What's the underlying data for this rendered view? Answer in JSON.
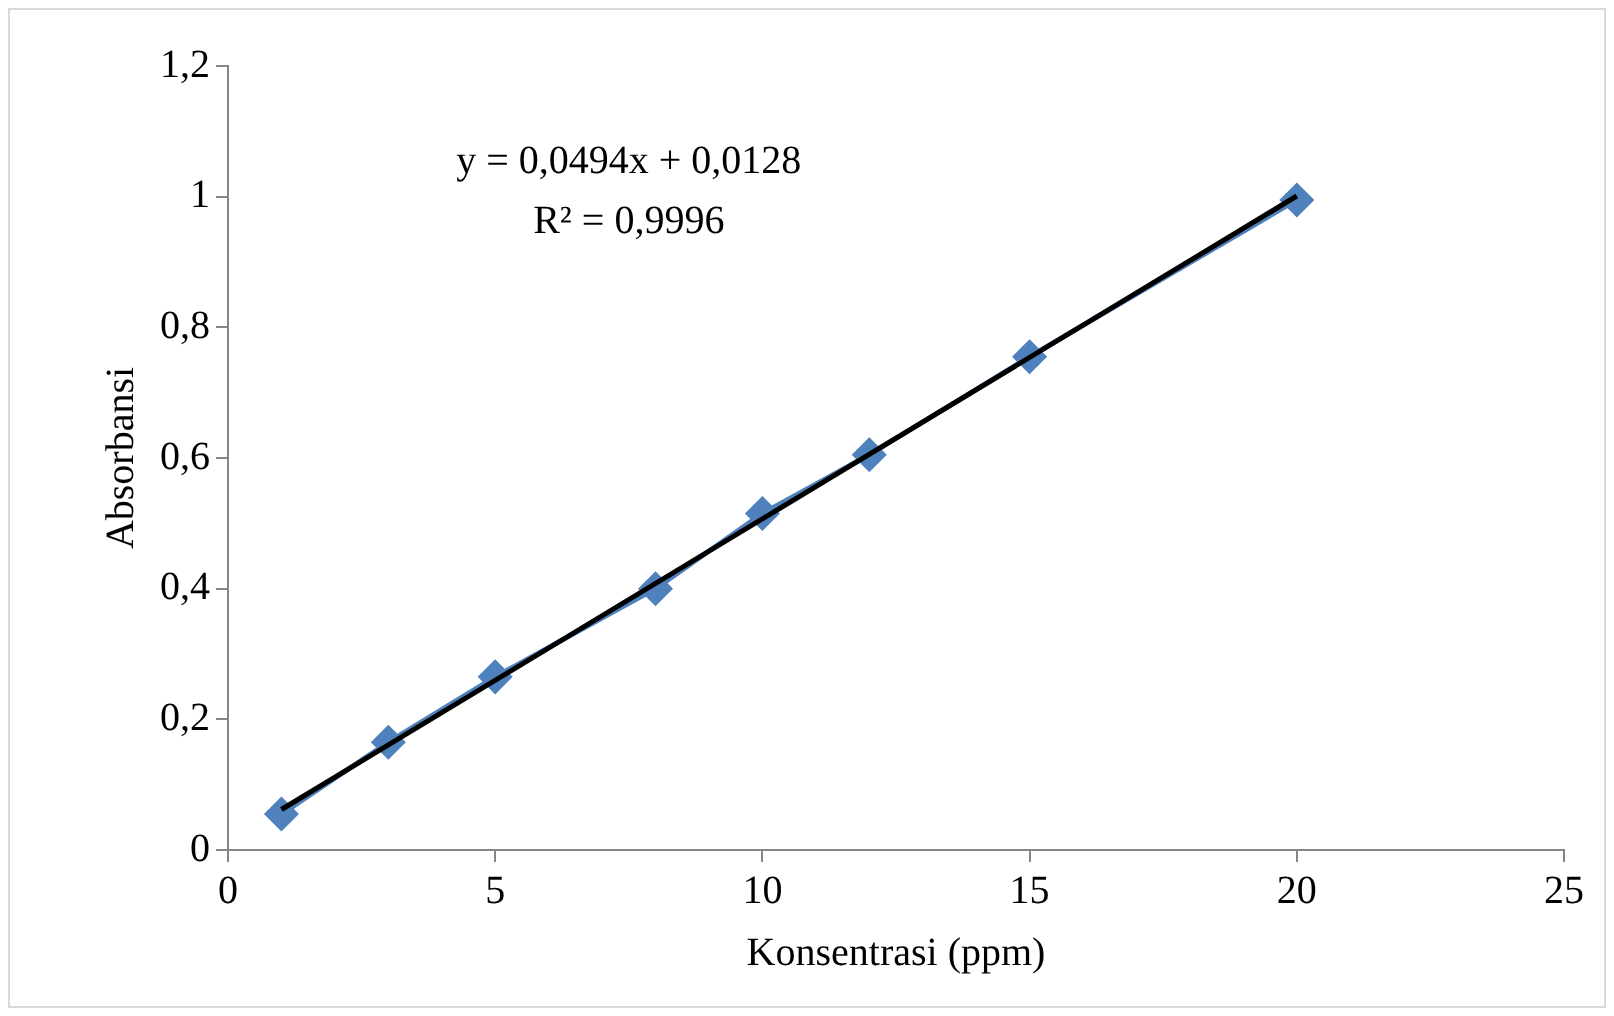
{
  "chart_data": {
    "type": "line",
    "xlabel": "Konsentrasi (ppm)",
    "ylabel": "Absorbansi",
    "xlim": [
      0,
      25
    ],
    "xticks": [
      0,
      5,
      10,
      15,
      20,
      25
    ],
    "ylim": [
      0,
      1.2
    ],
    "yticks": [
      0,
      {
        "value": 0.2,
        "label": "0,2"
      },
      {
        "value": 0.4,
        "label": "0,4"
      },
      {
        "value": 0.6,
        "label": "0,6"
      },
      {
        "value": 0.8,
        "label": "0,8"
      },
      1,
      {
        "value": 1.2,
        "label": "1,2"
      }
    ],
    "marker": "diamond",
    "series": [
      {
        "color": "#4f81bd",
        "x": [
          1,
          3,
          5,
          8,
          10,
          12,
          15,
          20
        ],
        "values": [
          0.055,
          0.165,
          0.265,
          0.4,
          0.515,
          0.605,
          0.755,
          0.995
        ]
      },
      {
        "color": "#000000",
        "marker": "none",
        "x": [
          1,
          20
        ],
        "values": [
          0.062,
          1.001
        ]
      }
    ],
    "annotations": [
      "y = 0,0494x + 0,0128",
      "R² = 0,9996"
    ]
  }
}
